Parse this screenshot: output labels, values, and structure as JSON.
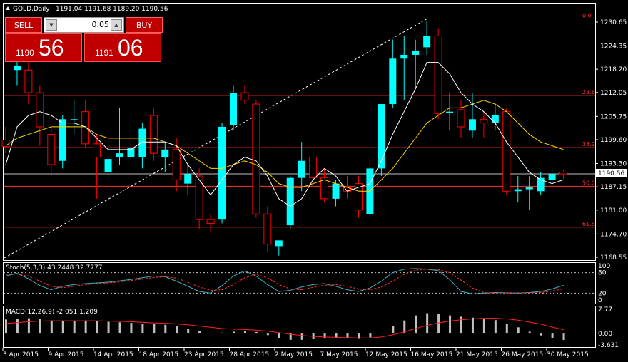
{
  "header": {
    "symbol": "GOLD,Daily",
    "ohlc": "1191.04 1191.68 1189.20 1190.56"
  },
  "trade_panel": {
    "sell_label": "SELL",
    "buy_label": "BUY",
    "lot_value": "0.05",
    "bid_prefix": "1190",
    "bid_big": "56",
    "ask_prefix": "1191",
    "ask_big": "06"
  },
  "current_price_label": "1190.56",
  "colors": {
    "bull": "#00ffff",
    "bear": "#ff0000",
    "fib": "#ff3030",
    "ma_fast": "#ffffff",
    "ma_slow": "#ffd700",
    "stoch_main": "#40b0c0",
    "stoch_signal": "#ff3030",
    "macd_hist": "#c0c0c0",
    "macd_signal": "#ff2020"
  },
  "chart_data": [
    {
      "type": "candlestick",
      "title": "GOLD,Daily",
      "ylim": [
        1168.55,
        1230.65
      ],
      "y_ticks": [
        "1230.65",
        "1224.35",
        "1218.20",
        "1212.05",
        "1205.75",
        "1199.60",
        "1193.30",
        "1187.15",
        "1181.00",
        "1174.70",
        "1168.55"
      ],
      "x_ticks": [
        "3 Apr 2015",
        "9 Apr 2015",
        "14 Apr 2015",
        "18 Apr 2015",
        "23 Apr 2015",
        "28 Apr 2015",
        "2 May 2015",
        "7 May 2015",
        "12 May 2015",
        "16 May 2015",
        "21 May 2015",
        "26 May 2015",
        "30 May 2015"
      ],
      "fibonacci_levels": [
        {
          "label": "0.0",
          "price": 1231.5
        },
        {
          "label": "23.6",
          "price": 1211.3
        },
        {
          "label": "38.2",
          "price": 1197.5
        },
        {
          "label": "50.0",
          "price": 1187.3
        },
        {
          "label": "61.8",
          "price": 1176.5
        }
      ],
      "candles": [
        {
          "o": 1199.5,
          "h": 1203.0,
          "l": 1196.0,
          "c": 1197.8
        },
        {
          "o": 1218.0,
          "h": 1221.0,
          "l": 1214.0,
          "c": 1219.0
        },
        {
          "o": 1218.0,
          "h": 1220.0,
          "l": 1209.0,
          "c": 1212.0
        },
        {
          "o": 1212.0,
          "h": 1214.0,
          "l": 1198.0,
          "c": 1203.0
        },
        {
          "o": 1201.0,
          "h": 1203.0,
          "l": 1190.0,
          "c": 1193.0
        },
        {
          "o": 1194.0,
          "h": 1206.0,
          "l": 1192.0,
          "c": 1205.0
        },
        {
          "o": 1205.0,
          "h": 1210.0,
          "l": 1201.0,
          "c": 1205.0
        },
        {
          "o": 1207.0,
          "h": 1210.0,
          "l": 1197.5,
          "c": 1198.5
        },
        {
          "o": 1198.5,
          "h": 1201.0,
          "l": 1184.0,
          "c": 1195.0
        },
        {
          "o": 1191.0,
          "h": 1198.0,
          "l": 1189.0,
          "c": 1194.5
        },
        {
          "o": 1195.0,
          "h": 1208.0,
          "l": 1193.0,
          "c": 1196.0
        },
        {
          "o": 1195.0,
          "h": 1206.0,
          "l": 1194.0,
          "c": 1197.5
        },
        {
          "o": 1195.0,
          "h": 1204.0,
          "l": 1192.0,
          "c": 1202.5
        },
        {
          "o": 1206.0,
          "h": 1208.0,
          "l": 1194.0,
          "c": 1196.0
        },
        {
          "o": 1195.0,
          "h": 1199.0,
          "l": 1191.0,
          "c": 1197.0
        },
        {
          "o": 1197.0,
          "h": 1200.0,
          "l": 1186.0,
          "c": 1189.0
        },
        {
          "o": 1188.0,
          "h": 1193.0,
          "l": 1185.0,
          "c": 1190.5
        },
        {
          "o": 1190.0,
          "h": 1192.0,
          "l": 1176.0,
          "c": 1178.5
        },
        {
          "o": 1178.5,
          "h": 1180.0,
          "l": 1175.0,
          "c": 1177.5
        },
        {
          "o": 1178.5,
          "h": 1204.0,
          "l": 1177.5,
          "c": 1203.0
        },
        {
          "o": 1203.5,
          "h": 1214.0,
          "l": 1202.0,
          "c": 1212.0
        },
        {
          "o": 1212.0,
          "h": 1214.0,
          "l": 1209.0,
          "c": 1210.0
        },
        {
          "o": 1209.0,
          "h": 1210.0,
          "l": 1179.0,
          "c": 1180.0
        },
        {
          "o": 1180.0,
          "h": 1182.0,
          "l": 1170.0,
          "c": 1172.0
        },
        {
          "o": 1171.5,
          "h": 1173.0,
          "l": 1169.0,
          "c": 1173.0
        },
        {
          "o": 1177.0,
          "h": 1190.0,
          "l": 1176.0,
          "c": 1189.5
        },
        {
          "o": 1189.5,
          "h": 1199.0,
          "l": 1186.0,
          "c": 1194.0
        },
        {
          "o": 1195.0,
          "h": 1198.0,
          "l": 1189.0,
          "c": 1189.5
        },
        {
          "o": 1189.5,
          "h": 1192.0,
          "l": 1183.0,
          "c": 1184.0
        },
        {
          "o": 1184.0,
          "h": 1189.0,
          "l": 1182.0,
          "c": 1188.0
        },
        {
          "o": 1187.0,
          "h": 1190.0,
          "l": 1184.0,
          "c": 1186.0
        },
        {
          "o": 1188.0,
          "h": 1190.0,
          "l": 1179.0,
          "c": 1181.0
        },
        {
          "o": 1180.0,
          "h": 1195.0,
          "l": 1179.0,
          "c": 1192.0
        },
        {
          "o": 1192.0,
          "h": 1209.0,
          "l": 1190.0,
          "c": 1209.0
        },
        {
          "o": 1209.0,
          "h": 1226.0,
          "l": 1208.0,
          "c": 1221.0
        },
        {
          "o": 1221.0,
          "h": 1227.0,
          "l": 1210.0,
          "c": 1222.0
        },
        {
          "o": 1222.0,
          "h": 1226.0,
          "l": 1213.0,
          "c": 1223.0
        },
        {
          "o": 1224.0,
          "h": 1231.0,
          "l": 1222.0,
          "c": 1227.0
        },
        {
          "o": 1227.0,
          "h": 1229.0,
          "l": 1205.0,
          "c": 1206.5
        },
        {
          "o": 1207.0,
          "h": 1212.0,
          "l": 1202.0,
          "c": 1207.0
        },
        {
          "o": 1207.5,
          "h": 1210.0,
          "l": 1200.0,
          "c": 1203.0
        },
        {
          "o": 1202.0,
          "h": 1212.0,
          "l": 1200.0,
          "c": 1205.0
        },
        {
          "o": 1205.0,
          "h": 1207.0,
          "l": 1200.0,
          "c": 1204.0
        },
        {
          "o": 1204.0,
          "h": 1209.0,
          "l": 1202.0,
          "c": 1206.0
        },
        {
          "o": 1207.0,
          "h": 1208.0,
          "l": 1185.0,
          "c": 1186.0
        },
        {
          "o": 1186.0,
          "h": 1190.0,
          "l": 1183.0,
          "c": 1186.5
        },
        {
          "o": 1186.5,
          "h": 1190.0,
          "l": 1181.0,
          "c": 1187.0
        },
        {
          "o": 1186.0,
          "h": 1191.0,
          "l": 1185.0,
          "c": 1189.5
        },
        {
          "o": 1189.0,
          "h": 1192.0,
          "l": 1188.0,
          "c": 1190.5
        },
        {
          "o": 1191.04,
          "h": 1191.68,
          "l": 1189.2,
          "c": 1190.56
        }
      ],
      "ma_fast": [
        1193,
        1203,
        1206,
        1207,
        1206,
        1204,
        1204,
        1203,
        1200,
        1197,
        1197,
        1197,
        1199,
        1199,
        1199,
        1198,
        1193,
        1189,
        1185,
        1189,
        1193,
        1195,
        1194,
        1190,
        1184,
        1182,
        1184,
        1189,
        1192,
        1190,
        1186,
        1187,
        1188,
        1194,
        1201,
        1207,
        1213,
        1220,
        1220,
        1217,
        1212,
        1209,
        1207,
        1204,
        1199,
        1195,
        1191,
        1189,
        1188,
        1189
      ],
      "ma_slow": [
        1198,
        1200,
        1201,
        1202,
        1203,
        1203,
        1203,
        1203,
        1201,
        1200,
        1200,
        1200,
        1200,
        1200,
        1199,
        1198,
        1196,
        1194,
        1192,
        1192,
        1193,
        1194,
        1193,
        1191,
        1188,
        1187,
        1187,
        1188,
        1189,
        1188,
        1187,
        1186,
        1186,
        1189,
        1192,
        1196,
        1200,
        1204,
        1206,
        1208,
        1208,
        1209,
        1210,
        1209,
        1207,
        1204,
        1201,
        1199,
        1198,
        1197
      ]
    },
    {
      "type": "line",
      "title": "Stoch(5,3,3) 43.2448 32.7777",
      "ylim": [
        0,
        100
      ],
      "y_ticks": [
        "100",
        "80",
        "20",
        "0"
      ],
      "series": [
        {
          "name": "main",
          "values": [
            70,
            78,
            62,
            42,
            30,
            40,
            45,
            48,
            50,
            52,
            56,
            60,
            65,
            70,
            68,
            55,
            40,
            25,
            20,
            42,
            70,
            85,
            70,
            45,
            25,
            28,
            38,
            45,
            48,
            40,
            30,
            25,
            35,
            55,
            80,
            90,
            92,
            90,
            86,
            60,
            25,
            18,
            20,
            22,
            21,
            20,
            22,
            25,
            32,
            43
          ]
        },
        {
          "name": "signal",
          "values": [
            75,
            76,
            70,
            55,
            40,
            36,
            40,
            45,
            48,
            50,
            53,
            57,
            61,
            66,
            68,
            64,
            52,
            38,
            28,
            30,
            45,
            65,
            75,
            65,
            45,
            32,
            30,
            37,
            43,
            45,
            40,
            32,
            30,
            38,
            55,
            75,
            87,
            90,
            89,
            80,
            58,
            35,
            22,
            20,
            21,
            21,
            21,
            22,
            26,
            33
          ]
        }
      ]
    },
    {
      "type": "bar",
      "title": "MACD(12,26,9) -2.051 1.209",
      "ylim": [
        -3.631,
        7.77
      ],
      "y_ticks": [
        "7.77",
        "0.00",
        "-3.631"
      ],
      "series": [
        {
          "name": "main",
          "values": [
            4.5,
            4.8,
            4.9,
            4.6,
            4.2,
            4.0,
            4.1,
            4.2,
            4.0,
            3.8,
            3.6,
            3.4,
            3.2,
            3.0,
            2.8,
            2.3,
            1.6,
            0.8,
            0.2,
            0.3,
            0.6,
            0.9,
            0.5,
            -0.5,
            -1.5,
            -2.0,
            -2.0,
            -1.8,
            -1.6,
            -1.5,
            -1.6,
            -1.7,
            -1.2,
            0.2,
            2.4,
            4.2,
            5.8,
            6.5,
            6.3,
            5.8,
            5.4,
            5.1,
            4.7,
            4.3,
            3.2,
            2.0,
            0.6,
            -0.6,
            -1.4,
            -2.051
          ]
        },
        {
          "name": "signal",
          "values": [
            3.2,
            3.5,
            3.8,
            4.0,
            4.1,
            4.1,
            4.1,
            4.1,
            4.1,
            4.0,
            3.9,
            3.8,
            3.6,
            3.4,
            3.3,
            3.1,
            2.8,
            2.4,
            2.0,
            1.6,
            1.4,
            1.3,
            1.1,
            0.8,
            0.3,
            -0.2,
            -0.6,
            -0.9,
            -1.1,
            -1.2,
            -1.3,
            -1.4,
            -1.4,
            -1.1,
            -0.4,
            0.5,
            1.6,
            2.6,
            3.4,
            4.0,
            4.4,
            4.7,
            4.9,
            4.9,
            4.7,
            4.3,
            3.7,
            3.0,
            2.1,
            1.209
          ]
        }
      ]
    }
  ]
}
